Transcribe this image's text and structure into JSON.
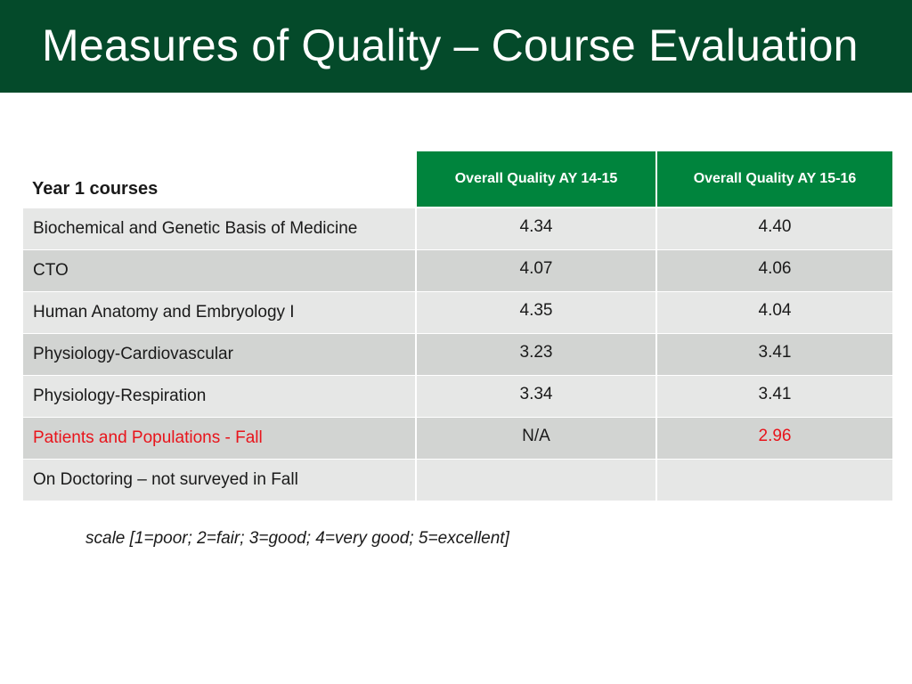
{
  "slide": {
    "title": "Measures of Quality – Course Evaluation",
    "colors": {
      "title_bar": "#044a2a",
      "header_green": "#00843d",
      "row_light": "#e6e7e6",
      "row_dark": "#d2d4d2",
      "highlight_red": "#e8141b"
    }
  },
  "table": {
    "headers": {
      "course": "Year 1 courses",
      "ay1415": "Overall Quality AY 14-15",
      "ay1516": "Overall Quality AY 15-16"
    },
    "rows": [
      {
        "course": "Biochemical and Genetic Basis of Medicine",
        "ay1415": "4.34",
        "ay1516": "4.40"
      },
      {
        "course": "CTO",
        "ay1415": "4.07",
        "ay1516": "4.06"
      },
      {
        "course": "Human Anatomy and Embryology I",
        "ay1415": "4.35",
        "ay1516": "4.04"
      },
      {
        "course": "Physiology-Cardiovascular",
        "ay1415": "3.23",
        "ay1516": "3.41"
      },
      {
        "course": "Physiology-Respiration",
        "ay1415": "3.34",
        "ay1516": "3.41"
      },
      {
        "course": "Patients and Populations - Fall",
        "ay1415": "N/A",
        "ay1516": "2.96"
      },
      {
        "course": "On Doctoring – not surveyed in Fall",
        "ay1415": "",
        "ay1516": ""
      }
    ]
  },
  "footnote": "scale [1=poor; 2=fair; 3=good; 4=very good; 5=excellent]"
}
